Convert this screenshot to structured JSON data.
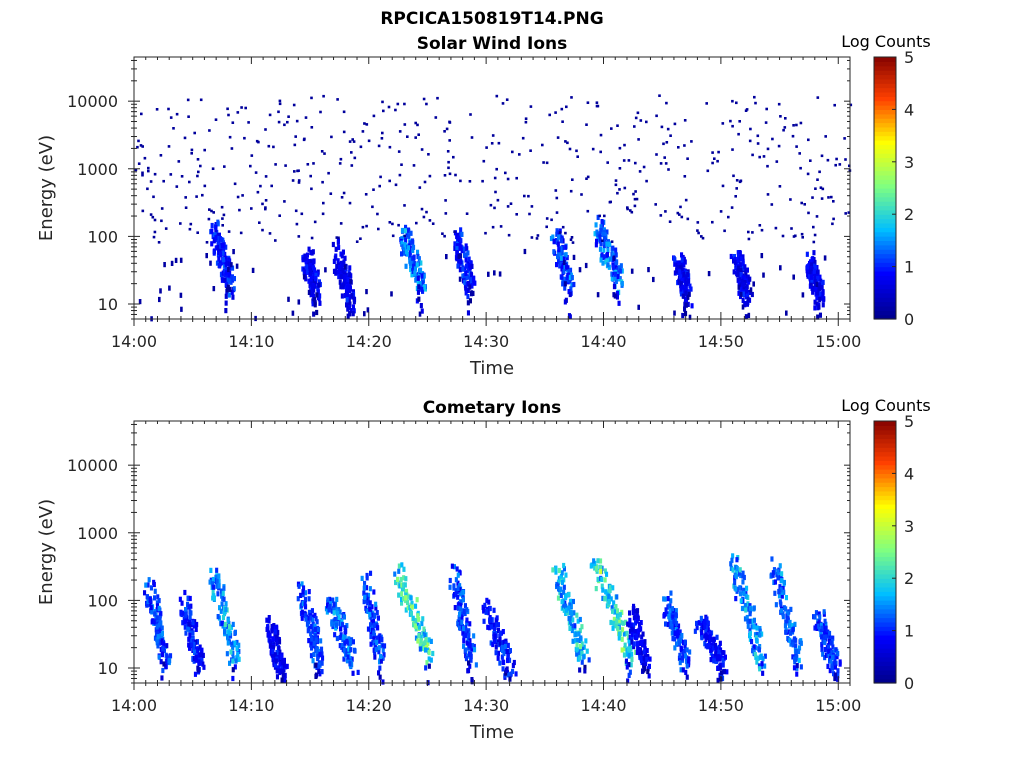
{
  "page": {
    "title": "RPCICA150819T14.PNG"
  },
  "chart_data": [
    {
      "type": "heatmap",
      "title": "Solar Wind Ions",
      "xlabel": "Time",
      "ylabel": "Energy (eV)",
      "y_scale": "log",
      "ylim": [
        6,
        45000
      ],
      "y_ticks": [
        10,
        100,
        1000,
        10000
      ],
      "y_tick_labels": [
        "10",
        "100",
        "1000",
        "10000"
      ],
      "x_range": [
        "14:00",
        "15:01"
      ],
      "x_ticks": [
        0,
        10,
        20,
        30,
        40,
        50,
        60
      ],
      "x_tick_labels": [
        "14:00",
        "14:10",
        "14:20",
        "14:30",
        "14:40",
        "14:50",
        "15:00"
      ],
      "colorbar": {
        "label": "Log Counts",
        "min": 0,
        "max": 5,
        "ticks": [
          "0",
          "1",
          "2",
          "3",
          "4",
          "5"
        ]
      },
      "grid": false,
      "colormap": [
        "#00008f",
        "#0000ff",
        "#00bfff",
        "#80ff80",
        "#ffff00",
        "#ff4000",
        "#800000"
      ],
      "streaks": [
        {
          "t": 6.7,
          "e1": 130,
          "e2": 18,
          "dur": 1.4,
          "level": 0.25
        },
        {
          "t": 14.6,
          "e1": 50,
          "e2": 14,
          "dur": 0.8,
          "level": 0.2
        },
        {
          "t": 17.2,
          "e1": 60,
          "e2": 10,
          "dur": 1.2,
          "level": 0.2
        },
        {
          "t": 22.8,
          "e1": 100,
          "e2": 20,
          "dur": 1.6,
          "level": 0.35
        },
        {
          "t": 27.4,
          "e1": 90,
          "e2": 18,
          "dur": 1.2,
          "level": 0.25
        },
        {
          "t": 35.8,
          "e1": 90,
          "e2": 20,
          "dur": 1.2,
          "level": 0.3
        },
        {
          "t": 39.4,
          "e1": 130,
          "e2": 20,
          "dur": 1.8,
          "level": 0.35
        },
        {
          "t": 46.2,
          "e1": 40,
          "e2": 14,
          "dur": 0.8,
          "level": 0.2
        },
        {
          "t": 51.2,
          "e1": 50,
          "e2": 12,
          "dur": 1.0,
          "level": 0.2
        },
        {
          "t": 57.5,
          "e1": 40,
          "e2": 12,
          "dur": 0.8,
          "level": 0.2
        }
      ]
    },
    {
      "type": "heatmap",
      "title": "Cometary Ions",
      "xlabel": "Time",
      "ylabel": "Energy (eV)",
      "y_scale": "log",
      "ylim": [
        6,
        45000
      ],
      "y_ticks": [
        10,
        100,
        1000,
        10000
      ],
      "y_tick_labels": [
        "10",
        "100",
        "1000",
        "10000"
      ],
      "x_range": [
        "14:00",
        "15:01"
      ],
      "x_ticks": [
        0,
        10,
        20,
        30,
        40,
        50,
        60
      ],
      "x_tick_labels": [
        "14:00",
        "14:10",
        "14:20",
        "14:30",
        "14:40",
        "14:50",
        "15:00"
      ],
      "colorbar": {
        "label": "Log Counts",
        "min": 0,
        "max": 5,
        "ticks": [
          "0",
          "1",
          "2",
          "3",
          "4",
          "5"
        ]
      },
      "grid": false,
      "colormap": [
        "#00008f",
        "#0000ff",
        "#00bfff",
        "#80ff80",
        "#ffff00",
        "#ff4000",
        "#800000"
      ],
      "streaks": [
        {
          "t": 1.2,
          "e1": 140,
          "e2": 12,
          "dur": 1.4,
          "level": 0.3
        },
        {
          "t": 4.2,
          "e1": 90,
          "e2": 10,
          "dur": 1.3,
          "level": 0.25
        },
        {
          "t": 6.6,
          "e1": 280,
          "e2": 12,
          "dur": 2.0,
          "level": 0.4
        },
        {
          "t": 11.5,
          "e1": 40,
          "e2": 8,
          "dur": 1.0,
          "level": 0.2
        },
        {
          "t": 14.2,
          "e1": 120,
          "e2": 12,
          "dur": 1.6,
          "level": 0.3
        },
        {
          "t": 16.6,
          "e1": 100,
          "e2": 12,
          "dur": 2.0,
          "level": 0.35
        },
        {
          "t": 19.6,
          "e1": 170,
          "e2": 12,
          "dur": 1.4,
          "level": 0.3
        },
        {
          "t": 22.4,
          "e1": 230,
          "e2": 15,
          "dur": 2.6,
          "level": 0.55
        },
        {
          "t": 27.2,
          "e1": 220,
          "e2": 14,
          "dur": 1.4,
          "level": 0.3
        },
        {
          "t": 29.8,
          "e1": 70,
          "e2": 10,
          "dur": 2.2,
          "level": 0.25
        },
        {
          "t": 35.9,
          "e1": 300,
          "e2": 13,
          "dur": 2.4,
          "level": 0.45
        },
        {
          "t": 39.2,
          "e1": 350,
          "e2": 15,
          "dur": 3.0,
          "level": 0.55
        },
        {
          "t": 42.3,
          "e1": 60,
          "e2": 10,
          "dur": 1.2,
          "level": 0.2
        },
        {
          "t": 45.3,
          "e1": 90,
          "e2": 12,
          "dur": 1.6,
          "level": 0.3
        },
        {
          "t": 48.1,
          "e1": 50,
          "e2": 10,
          "dur": 2.0,
          "level": 0.25
        },
        {
          "t": 51.0,
          "e1": 350,
          "e2": 12,
          "dur": 2.4,
          "level": 0.4
        },
        {
          "t": 54.4,
          "e1": 300,
          "e2": 12,
          "dur": 2.2,
          "level": 0.35
        },
        {
          "t": 58.2,
          "e1": 50,
          "e2": 10,
          "dur": 1.5,
          "level": 0.3
        }
      ]
    }
  ]
}
